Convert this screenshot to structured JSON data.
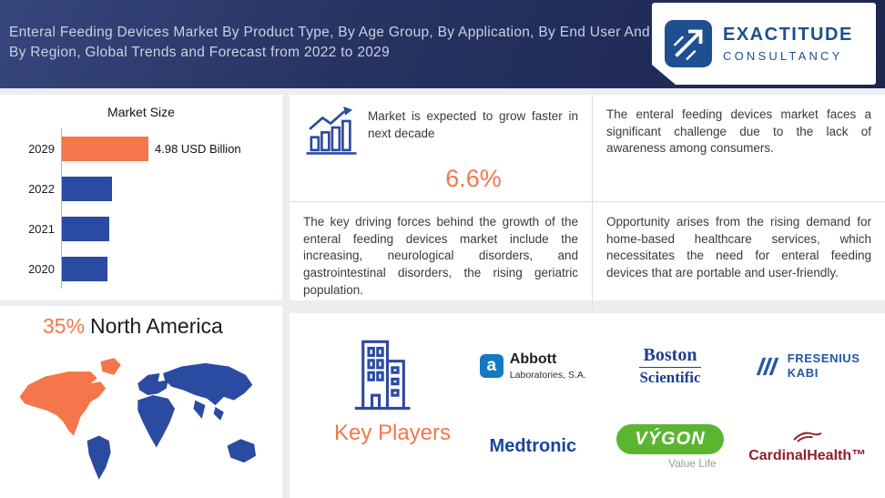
{
  "header": {
    "title_lines": [
      "Enteral Feeding Devices Market By Product Type, By Age Group, By Application, By End User And",
      "By Region, Global Trends and Forecast from 2022 to 2029"
    ],
    "brand": {
      "name": "EXACTITUDE",
      "subname": "CONSULTANCY"
    }
  },
  "chart_data": {
    "type": "bar",
    "orientation": "horizontal",
    "title": "Market Size",
    "categories": [
      "2029",
      "2022",
      "2021",
      "2020"
    ],
    "values": [
      4.98,
      2.9,
      2.75,
      2.6
    ],
    "value_labels": [
      "4.98 USD Billion",
      "",
      "",
      ""
    ],
    "unit": "USD Billion",
    "xlim": [
      0,
      5.2
    ],
    "highlight_index": 0,
    "highlight_color": "#F4764A",
    "bar_color": "#2B4AA2",
    "grid": false,
    "legend": false
  },
  "insights": {
    "growth": {
      "text": "Market is expected to grow faster in next decade",
      "value": "6.6%"
    },
    "challenge": "The enteral feeding devices market faces a significant challenge due to the lack of awareness among consumers.",
    "drivers": "The key driving forces behind the growth of the enteral feeding devices market include the increasing, neurological disorders, and gastrointestinal disorders, the rising geriatric population.",
    "opportunity": "Opportunity arises from the rising demand for home-based healthcare services, which necessitates the need for enteral feeding devices that are portable and user-friendly."
  },
  "region": {
    "share": "35%",
    "name": "North America"
  },
  "key_players": {
    "label": "Key Players",
    "companies": [
      {
        "mark": "a",
        "name": "Abbott",
        "sub": "Laboratories, S.A."
      },
      {
        "line1": "Boston",
        "line2": "Scientific"
      },
      {
        "line1": "FRESENIUS",
        "line2": "KABI"
      },
      {
        "name": "Medtronic"
      },
      {
        "name": "VÝGON",
        "tagline": "Value Life"
      },
      {
        "name": "CardinalHealth™"
      }
    ]
  },
  "colors": {
    "accent_orange": "#F4764A",
    "bar_blue": "#2B4AA2",
    "header_navy": "#25325F",
    "page_background": "#ECEDF0",
    "logo_blue": "#1D4F91",
    "vygon_green": "#5CB531",
    "cardinal_red": "#8E1F2C"
  }
}
